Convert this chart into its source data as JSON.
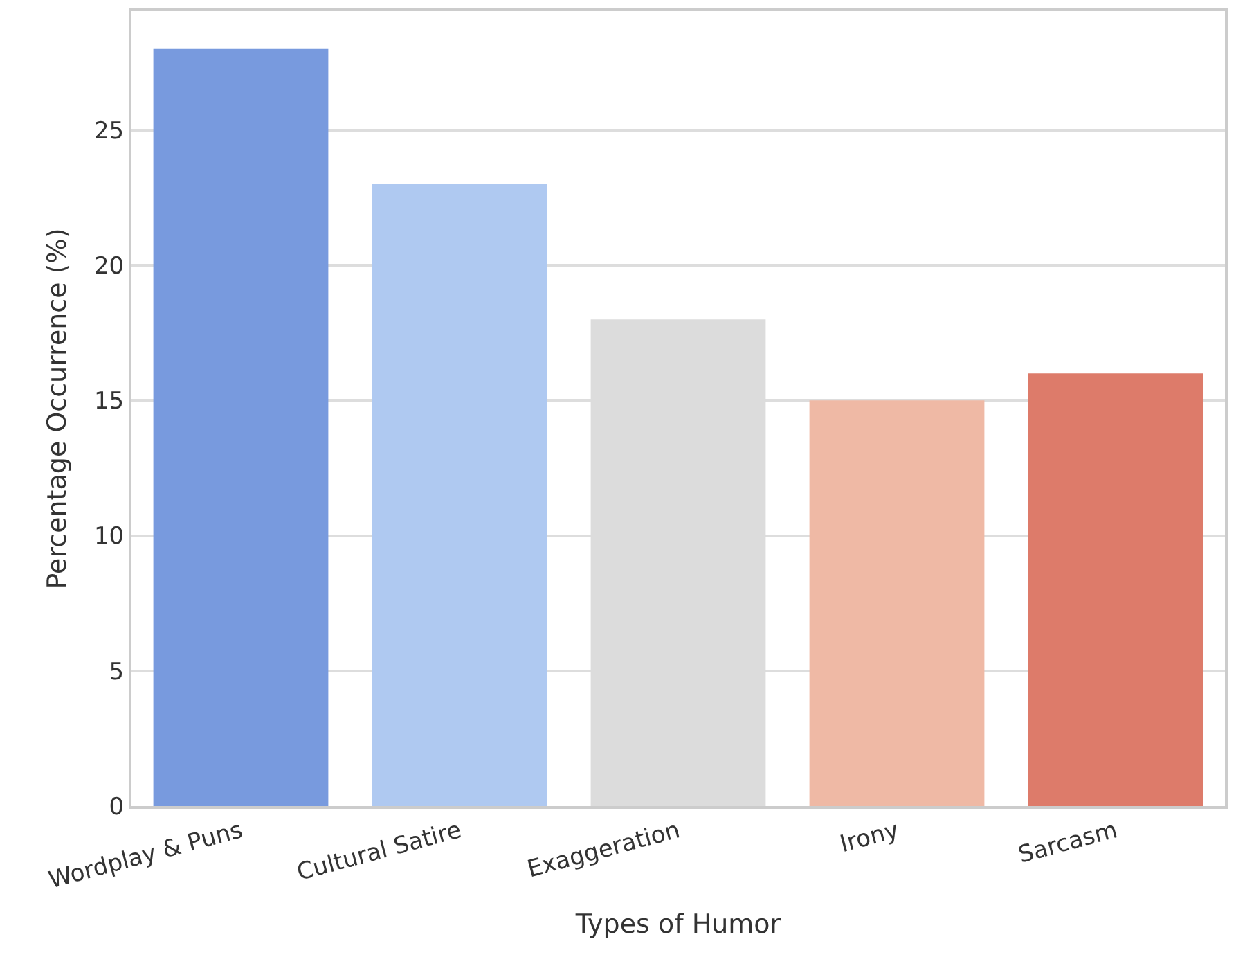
{
  "chart_data": {
    "type": "bar",
    "xlabel": "Types of Humor",
    "ylabel": "Percentage Occurrence (%)",
    "categories": [
      "Wordplay & Puns",
      "Cultural Satire",
      "Exaggeration",
      "Irony",
      "Sarcasm"
    ],
    "values": [
      28,
      23,
      18,
      15,
      16
    ],
    "colors": [
      "#789ade",
      "#afc9f1",
      "#dcdcdc",
      "#efb9a5",
      "#dd7b6a"
    ],
    "ylim": [
      0,
      29.4
    ],
    "yticks": [
      0,
      5,
      10,
      15,
      20,
      25
    ],
    "grid": "y"
  }
}
